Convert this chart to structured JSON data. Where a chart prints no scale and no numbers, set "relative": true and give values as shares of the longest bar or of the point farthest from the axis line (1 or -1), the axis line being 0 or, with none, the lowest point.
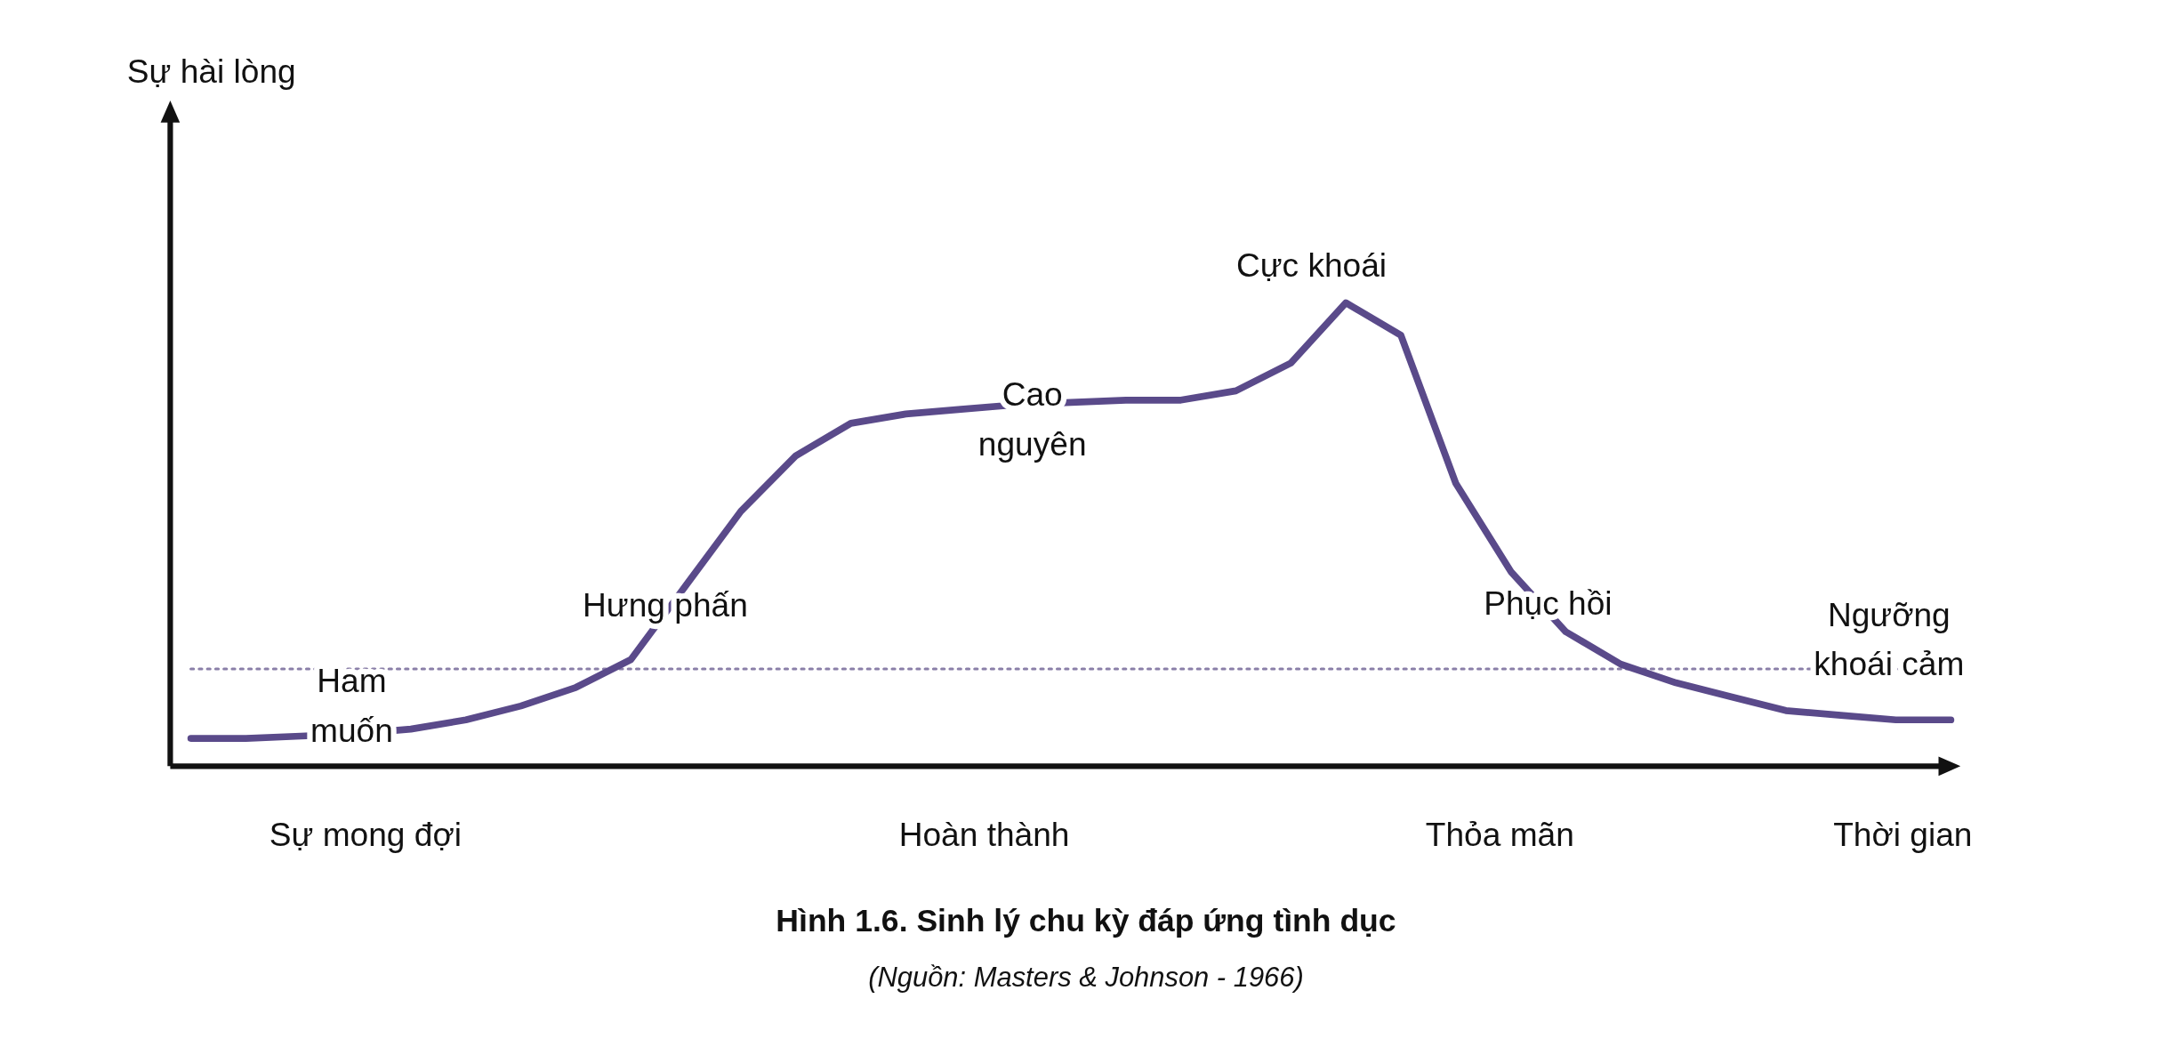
{
  "chart_data": {
    "type": "line",
    "title": "Hình 1.6. Sinh lý chu kỳ đáp ứng tình dục",
    "subtitle": "(Nguồn: Masters & Johnson - 1966)",
    "xlabel": "Thời gian",
    "relative": true,
    "categories": [
      null,
      null,
      null,
      null,
      null,
      null,
      null,
      null,
      null,
      null,
      null,
      null,
      null,
      null,
      null,
      null,
      null,
      null,
      null,
      null,
      null,
      null,
      null,
      null,
      null,
      null,
      null,
      null,
      null,
      null,
      null,
      null,
      null
    ],
    "series": [
      {
        "color": "#8a7fa8",
        "line_style": "dotted",
        "values": [
          0.21,
          0.21,
          0.21,
          0.21,
          0.21,
          0.21,
          0.21,
          0.21,
          0.21,
          0.21,
          0.21,
          0.21,
          0.21,
          0.21,
          0.21,
          0.21,
          0.21,
          0.21,
          0.21,
          0.21,
          0.21,
          0.21,
          0.21,
          0.21,
          0.21,
          0.21,
          0.21,
          0.21,
          0.21,
          0.21,
          0.21,
          0.21,
          0.21
        ]
      },
      {
        "color": "#5a4a8a",
        "values": [
          0.06,
          0.06,
          0.065,
          0.07,
          0.08,
          0.1,
          0.13,
          0.17,
          0.23,
          0.39,
          0.55,
          0.67,
          0.74,
          0.76,
          0.77,
          0.78,
          0.785,
          0.79,
          0.79,
          0.81,
          0.87,
          1,
          0.93,
          0.61,
          0.42,
          0.29,
          0.22,
          0.18,
          0.15,
          0.12,
          0.11,
          0.1,
          0.1
        ]
      }
    ],
    "annotations": [
      "Sự mong đợi",
      "Hoàn thành",
      "Thỏa mãn",
      "Ham muốn",
      "Hưng phấn",
      "Cao nguyên",
      "Cực khoái",
      "Phục hồi",
      "Ngưỡng khoái cảm",
      "Sự hài lòng"
    ]
  }
}
